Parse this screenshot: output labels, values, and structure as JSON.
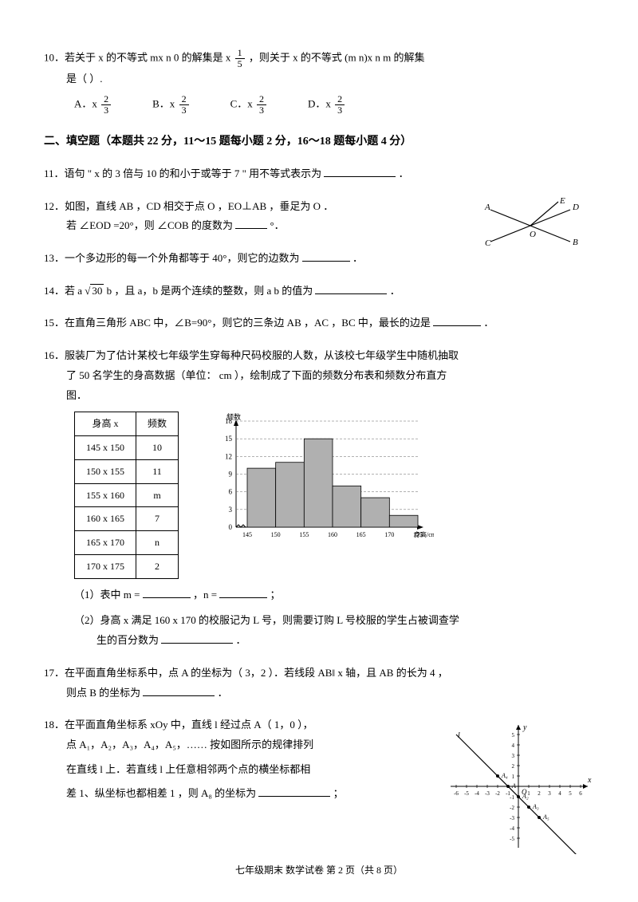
{
  "q10": {
    "text_a": "10．若关于  x 的不等式  mx   n   0 的解集是  x",
    "frac_num": "1",
    "frac_den": "5",
    "text_b": "，则关于  x 的不等式 (m   n)x   n   m 的解集",
    "text_c": "是（        ）.",
    "options": {
      "a_label": "A．x",
      "b_label": "B．x",
      "c_label": "C．x",
      "d_label": "D．x",
      "num": "2",
      "den": "3"
    }
  },
  "section2": "二、填空题（本题共   22 分，11～15 题每小题  2 分，16～18 题每小题 4 分）",
  "q11": "11．语句 \" x 的 3 倍与  10 的和小于或等于    7 \" 用不等式表示为",
  "q11_end": "．",
  "q12_a": "12．如图，直线   AB ，CD 相交于点  O ，EO⊥AB ，垂足为  O ．",
  "q12_b": "若 ∠EOD =20°，则 ∠COB 的度数为",
  "q12_c": "°．",
  "q13_a": "13．一个多边形的每一个外角都等于     40°，则它的边数为",
  "q13_end": "．",
  "q14_a": "14．若 a",
  "q14_sqrt": "30",
  "q14_b": "   b ，且 a，b 是两个连续的整数，则   a   b 的值为",
  "q14_end": "．",
  "q15_a": "15．在直角三角形  ABC 中，∠B=90°，则它的三条边   AB ，AC ，BC 中，最长的边是",
  "q15_end": "．",
  "q16_a": "16．服装厂为了估计某校七年级学生穿每种尺码校服的人数，从该校七年级学生中随机抽取",
  "q16_b": "了 50 名学生的身高数据（单位：    cm ），绘制成了下面的频数分布表和频数分布直方",
  "q16_c": "图．",
  "table": {
    "headers": [
      "身高 x",
      "频数"
    ],
    "rows": [
      [
        "145   x   150",
        "10"
      ],
      [
        "150   x   155",
        "11"
      ],
      [
        "155   x   160",
        "m"
      ],
      [
        "160   x   165",
        "7"
      ],
      [
        "165   x   170",
        "n"
      ],
      [
        "170   x   175",
        "2"
      ]
    ]
  },
  "histogram": {
    "ylabel": "频数",
    "xlabel": "身高/cm",
    "ymax": 18,
    "yticks": [
      0,
      3,
      6,
      9,
      12,
      15,
      18
    ],
    "xticks": [
      "145",
      "150",
      "155",
      "160",
      "165",
      "170",
      "175"
    ],
    "bars": [
      10,
      11,
      15,
      7,
      5,
      2
    ],
    "bar_color": "#b0b0b0",
    "grid_dash": "3,2"
  },
  "q16_s1_a": "（1）表中  m =",
  "q16_s1_b": "，n =",
  "q16_s1_c": "；",
  "q16_s2_a": "（2）身高 x 满足 160   x   170 的校服记为  L 号，则需要订购   L 号校服的学生占被调查学",
  "q16_s2_b": "生的百分数为",
  "q16_s2_end": "．",
  "q17_a": "17．在平面直角坐标系中，点   A  的坐标为（   3，2 ）．若线段  AB‖ x 轴，且  AB 的长为 4 ，",
  "q17_b": "则点 B 的坐标为",
  "q17_end": "．",
  "q18_a": "18．在平面直角坐标系  xOy 中，直线  l 经过点 A（  1，0 ），",
  "q18_b": "点 A₁，A₂，A₃，A₄，A₅，…… 按如图所示的规律排列",
  "q18_c": "在直线 l 上．若直线  l 上任意相邻两个点的横坐标都相",
  "q18_d": "差 1、纵坐标也都相差   1 ，则 A₈ 的坐标为",
  "q18_end": "；",
  "fig12": {
    "labels": {
      "A": "A",
      "B": "B",
      "C": "C",
      "D": "D",
      "E": "E",
      "O": "O"
    }
  },
  "fig18": {
    "labels": [
      "l",
      "O",
      "x",
      "y",
      "A",
      "A₂",
      "A₃",
      "A₄",
      "A₅"
    ],
    "range": 6
  },
  "footer": "七年级期末     数学试卷     第 2 页（共  8 页）"
}
